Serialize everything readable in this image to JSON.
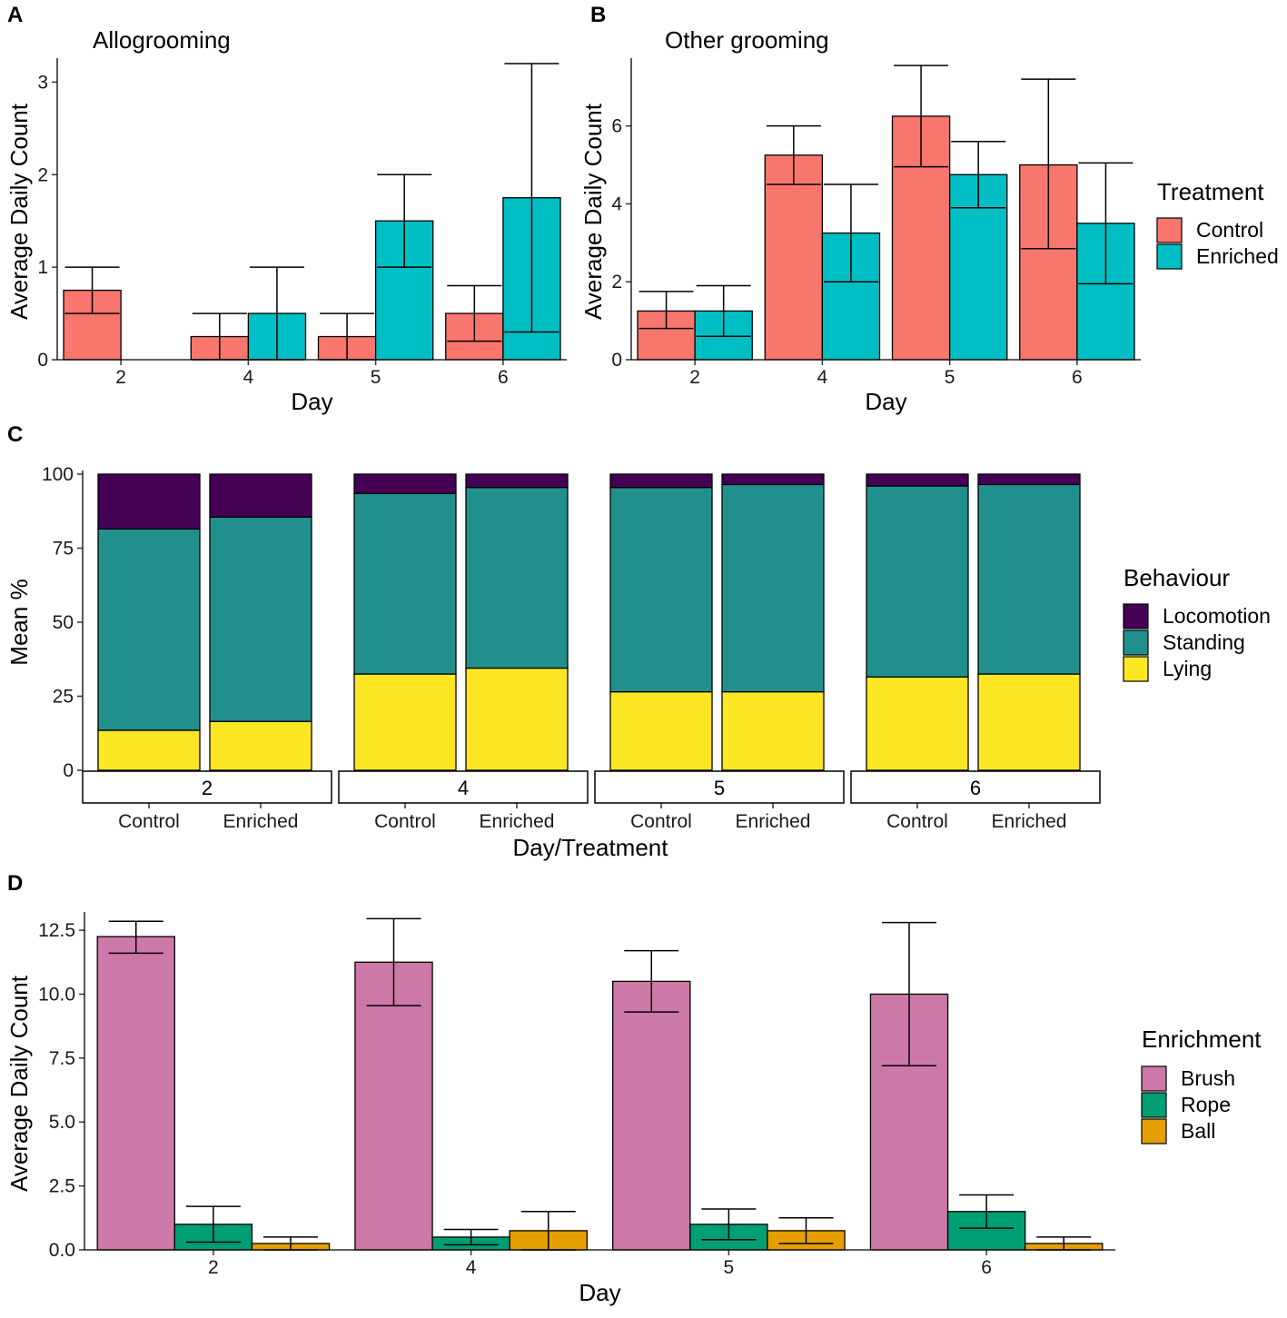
{
  "chart_data": [
    {
      "panel": "A",
      "type": "bar",
      "title": "Allogrooming",
      "xlabel": "Day",
      "ylabel": "Average Daily Count",
      "categories": [
        "2",
        "4",
        "5",
        "6"
      ],
      "ylim": [
        0,
        3.2
      ],
      "yticks": [
        "0",
        "1",
        "2",
        "3"
      ],
      "series": [
        {
          "name": "Control",
          "color": "#F8766D",
          "values": [
            0.75,
            0.25,
            0.25,
            0.5
          ],
          "error_low": [
            0.5,
            0,
            0,
            0.2
          ],
          "error_high": [
            1.0,
            0.5,
            0.5,
            0.8
          ]
        },
        {
          "name": "Enriched",
          "color": "#00BFC4",
          "values": [
            0,
            0.5,
            1.5,
            1.75
          ],
          "error_low": [
            null,
            0,
            1.0,
            0.3
          ],
          "error_high": [
            null,
            1.0,
            2.0,
            3.2
          ]
        }
      ]
    },
    {
      "panel": "B",
      "type": "bar",
      "title": "Other grooming",
      "xlabel": "Day",
      "ylabel": "Average Daily Count",
      "categories": [
        "2",
        "4",
        "5",
        "6"
      ],
      "ylim": [
        0,
        7.6
      ],
      "yticks": [
        "0",
        "2",
        "4",
        "6"
      ],
      "series": [
        {
          "name": "Control",
          "color": "#F8766D",
          "values": [
            1.25,
            5.25,
            6.25,
            5.0
          ],
          "error_low": [
            0.8,
            4.5,
            4.95,
            2.85
          ],
          "error_high": [
            1.75,
            6.0,
            7.55,
            7.2
          ]
        },
        {
          "name": "Enriched",
          "color": "#00BFC4",
          "values": [
            1.25,
            3.25,
            4.75,
            3.5
          ],
          "error_low": [
            0.6,
            2.0,
            3.9,
            1.95
          ],
          "error_high": [
            1.9,
            4.5,
            5.6,
            5.05
          ]
        }
      ],
      "legend": {
        "title": "Treatment",
        "entries": [
          "Control",
          "Enriched"
        ],
        "position": "right"
      }
    },
    {
      "panel": "C",
      "type": "bar",
      "stacked": true,
      "xlabel": "Day/Treatment",
      "ylabel": "Mean %",
      "ylim": [
        0,
        100
      ],
      "yticks": [
        "0",
        "25",
        "50",
        "75",
        "100"
      ],
      "facets": [
        "2",
        "4",
        "5",
        "6"
      ],
      "categories": [
        "Control",
        "Enriched"
      ],
      "series": [
        {
          "name": "Lying",
          "color": "#FDE725",
          "values": [
            [
              13.5,
              16.5
            ],
            [
              32.5,
              34.5
            ],
            [
              26.5,
              26.5
            ],
            [
              31.5,
              32.5
            ]
          ]
        },
        {
          "name": "Standing",
          "color": "#21908C",
          "values": [
            [
              68.0,
              69.0
            ],
            [
              61.0,
              61.0
            ],
            [
              69.0,
              70.0
            ],
            [
              64.5,
              64.0
            ]
          ]
        },
        {
          "name": "Locomotion",
          "color": "#440154",
          "values": [
            [
              18.5,
              14.5
            ],
            [
              6.5,
              4.5
            ],
            [
              4.5,
              3.5
            ],
            [
              4.0,
              3.5
            ]
          ]
        }
      ],
      "legend": {
        "title": "Behaviour",
        "entries": [
          "Locomotion",
          "Standing",
          "Lying"
        ],
        "position": "right"
      }
    },
    {
      "panel": "D",
      "type": "bar",
      "xlabel": "Day",
      "ylabel": "Average Daily Count",
      "categories": [
        "2",
        "4",
        "5",
        "6"
      ],
      "ylim": [
        0,
        13.0
      ],
      "yticks": [
        "0.0",
        "2.5",
        "5.0",
        "7.5",
        "10.0",
        "12.5"
      ],
      "series": [
        {
          "name": "Brush",
          "color": "#CC79A7",
          "values": [
            12.25,
            11.25,
            10.5,
            10.0
          ],
          "error_low": [
            11.6,
            9.55,
            9.3,
            7.2
          ],
          "error_high": [
            12.85,
            12.95,
            11.7,
            12.8
          ]
        },
        {
          "name": "Rope",
          "color": "#009E73",
          "values": [
            1.0,
            0.5,
            1.0,
            1.5
          ],
          "error_low": [
            0.3,
            0.2,
            0.4,
            0.85
          ],
          "error_high": [
            1.7,
            0.8,
            1.6,
            2.15
          ]
        },
        {
          "name": "Ball",
          "color": "#E69F00",
          "values": [
            0.25,
            0.75,
            0.75,
            0.25
          ],
          "error_low": [
            0.0,
            0.0,
            0.25,
            0.0
          ],
          "error_high": [
            0.5,
            1.5,
            1.25,
            0.5
          ]
        }
      ],
      "legend": {
        "title": "Enrichment",
        "entries": [
          "Brush",
          "Rope",
          "Ball"
        ],
        "position": "right"
      }
    }
  ]
}
